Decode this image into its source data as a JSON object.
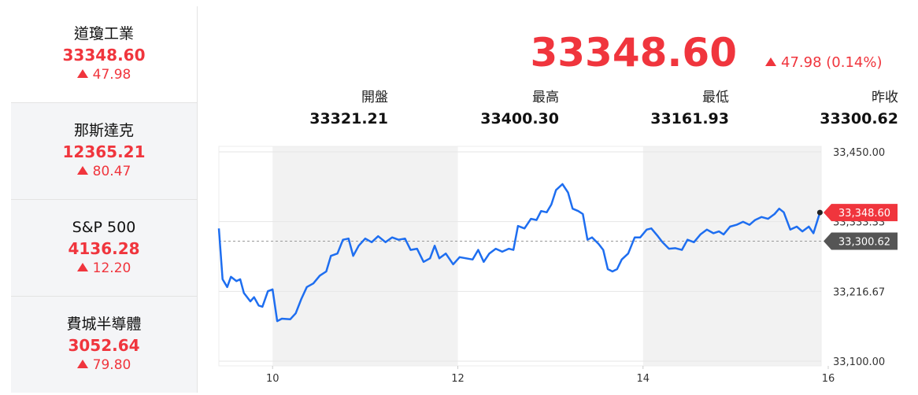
{
  "sidebar": [
    {
      "name": "道瓊工業",
      "price": "33348.60",
      "change": "47.98"
    },
    {
      "name": "那斯達克",
      "price": "12365.21",
      "change": "80.47"
    },
    {
      "name": "S&P 500",
      "price": "4136.28",
      "change": "12.20"
    },
    {
      "name": "費城半導體",
      "price": "3052.64",
      "change": "79.80"
    }
  ],
  "header": {
    "price": "33348.60",
    "change": "47.98",
    "change_pct": "(0.14%)"
  },
  "stats": [
    {
      "label": "開盤",
      "value": "33321.21"
    },
    {
      "label": "最高",
      "value": "33400.30"
    },
    {
      "label": "最低",
      "value": "33161.93"
    },
    {
      "label": "昨收",
      "value": "33300.62"
    }
  ],
  "chart_data": {
    "type": "line",
    "color": "#1e6ef0",
    "x": [
      9.42,
      9.46,
      9.51,
      9.55,
      9.61,
      9.65,
      9.69,
      9.76,
      9.8,
      9.85,
      9.89,
      9.95,
      10.0,
      10.05,
      10.1,
      10.19,
      10.25,
      10.31,
      10.37,
      10.44,
      10.51,
      10.58,
      10.63,
      10.7,
      10.76,
      10.82,
      10.87,
      10.93,
      11.0,
      11.07,
      11.14,
      11.22,
      11.29,
      11.36,
      11.43,
      11.49,
      11.56,
      11.63,
      11.7,
      11.75,
      11.8,
      11.87,
      11.95,
      12.02,
      12.09,
      12.16,
      12.22,
      12.28,
      12.34,
      12.41,
      12.48,
      12.55,
      12.6,
      12.65,
      12.72,
      12.79,
      12.85,
      12.9,
      12.96,
      13.01,
      13.06,
      13.13,
      13.19,
      13.24,
      13.3,
      13.35,
      13.4,
      13.45,
      13.52,
      13.57,
      13.62,
      13.67,
      13.72,
      13.77,
      13.84,
      13.91,
      13.97,
      14.04,
      14.09,
      14.16,
      14.21,
      14.28,
      14.35,
      14.42,
      14.48,
      14.55,
      14.62,
      14.69,
      14.76,
      14.82,
      14.87,
      14.94,
      15.01,
      15.08,
      15.15,
      15.21,
      15.28,
      15.35,
      15.42,
      15.47,
      15.52,
      15.59,
      15.66,
      15.72,
      15.79,
      15.84,
      15.91
    ],
    "values": [
      33322,
      33237,
      33224,
      33241,
      33234,
      33237,
      33214,
      33200,
      33207,
      33193,
      33191,
      33217,
      33220,
      33167,
      33171,
      33170,
      33180,
      33204,
      33224,
      33230,
      33243,
      33250,
      33276,
      33280,
      33303,
      33305,
      33276,
      33293,
      33305,
      33299,
      33309,
      33299,
      33307,
      33303,
      33305,
      33286,
      33288,
      33266,
      33272,
      33293,
      33272,
      33280,
      33262,
      33274,
      33272,
      33270,
      33286,
      33266,
      33280,
      33288,
      33283,
      33288,
      33286,
      33326,
      33322,
      33338,
      33336,
      33351,
      33349,
      33362,
      33386,
      33396,
      33382,
      33355,
      33351,
      33346,
      33303,
      33307,
      33296,
      33286,
      33254,
      33250,
      33254,
      33270,
      33280,
      33307,
      33307,
      33320,
      33322,
      33309,
      33299,
      33288,
      33289,
      33286,
      33303,
      33299,
      33312,
      33320,
      33314,
      33317,
      33312,
      33325,
      33328,
      33333,
      33328,
      33336,
      33341,
      33338,
      33346,
      33355,
      33349,
      33320,
      33325,
      33317,
      33325,
      33314,
      33348.6
    ],
    "xlim": [
      9.42,
      16
    ],
    "xticks": [
      10,
      12,
      14,
      16
    ],
    "ylim": [
      33100,
      33450
    ],
    "yticks": [
      {
        "value": 33100,
        "label": "33,100.00"
      },
      {
        "value": 33216.67,
        "label": "33,216.67"
      },
      {
        "value": 33333.33,
        "label": "33,333.33"
      },
      {
        "value": 33450,
        "label": "33,450.00"
      }
    ],
    "grid": true,
    "shaded_bands": [
      [
        10,
        12
      ],
      [
        14,
        16
      ]
    ],
    "reference_line": {
      "value": 33300.62,
      "label": "33,300.62"
    },
    "last_price_label": {
      "value": 33348.6,
      "label": "33,348.60"
    }
  }
}
